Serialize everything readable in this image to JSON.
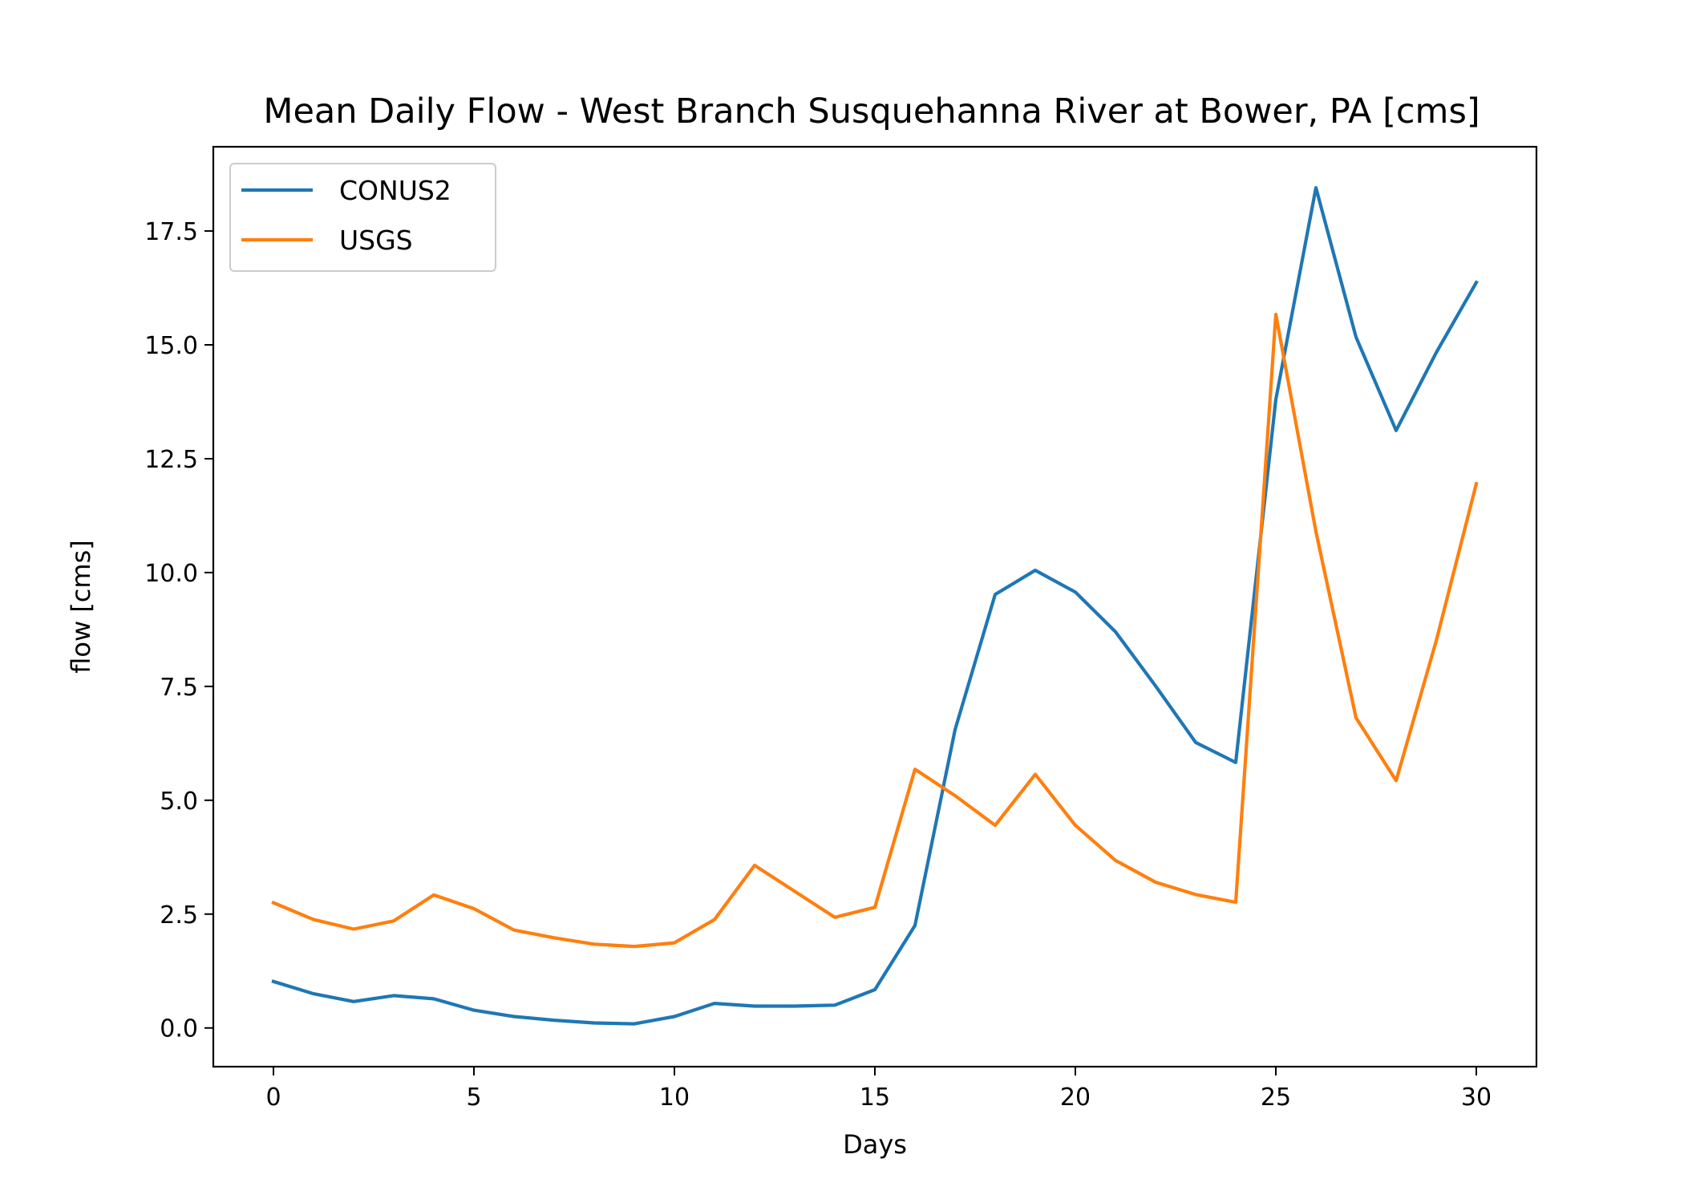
{
  "chart_data": {
    "type": "line",
    "title": "Mean Daily Flow - West Branch Susquehanna River at Bower, PA [cms]",
    "xlabel": "Days",
    "ylabel": "flow [cms]",
    "xlim": [
      -1.5,
      31.5
    ],
    "ylim": [
      -0.85,
      19.35
    ],
    "xticks": [
      0,
      5,
      10,
      15,
      20,
      25,
      30
    ],
    "yticks": [
      0.0,
      2.5,
      5.0,
      7.5,
      10.0,
      12.5,
      15.0,
      17.5
    ],
    "xtick_labels": [
      "0",
      "5",
      "10",
      "15",
      "20",
      "25",
      "30"
    ],
    "ytick_labels": [
      "0.0",
      "2.5",
      "5.0",
      "7.5",
      "10.0",
      "12.5",
      "15.0",
      "17.5"
    ],
    "grid": false,
    "legend_position": "upper-left",
    "x": [
      0,
      1,
      2,
      3,
      4,
      5,
      6,
      7,
      8,
      9,
      10,
      11,
      12,
      13,
      14,
      15,
      16,
      17,
      18,
      19,
      20,
      21,
      22,
      23,
      24,
      25,
      26,
      27,
      28,
      29,
      30
    ],
    "series": [
      {
        "name": "CONUS2",
        "color": "#1f77b4",
        "values": [
          1.02,
          0.75,
          0.58,
          0.71,
          0.64,
          0.39,
          0.25,
          0.17,
          0.11,
          0.09,
          0.25,
          0.54,
          0.48,
          0.48,
          0.5,
          0.84,
          2.25,
          6.55,
          9.52,
          10.05,
          9.57,
          8.7,
          7.51,
          6.27,
          5.83,
          13.8,
          18.45,
          15.17,
          13.12,
          14.83,
          16.37
        ]
      },
      {
        "name": "USGS",
        "color": "#ff7f0e",
        "values": [
          2.75,
          2.38,
          2.17,
          2.35,
          2.92,
          2.62,
          2.15,
          1.98,
          1.84,
          1.79,
          1.87,
          2.38,
          3.57,
          3.0,
          2.43,
          2.65,
          5.68,
          5.1,
          4.45,
          5.57,
          4.45,
          3.68,
          3.2,
          2.93,
          2.76,
          15.67,
          10.9,
          6.81,
          5.43,
          8.5,
          11.95
        ]
      }
    ]
  }
}
